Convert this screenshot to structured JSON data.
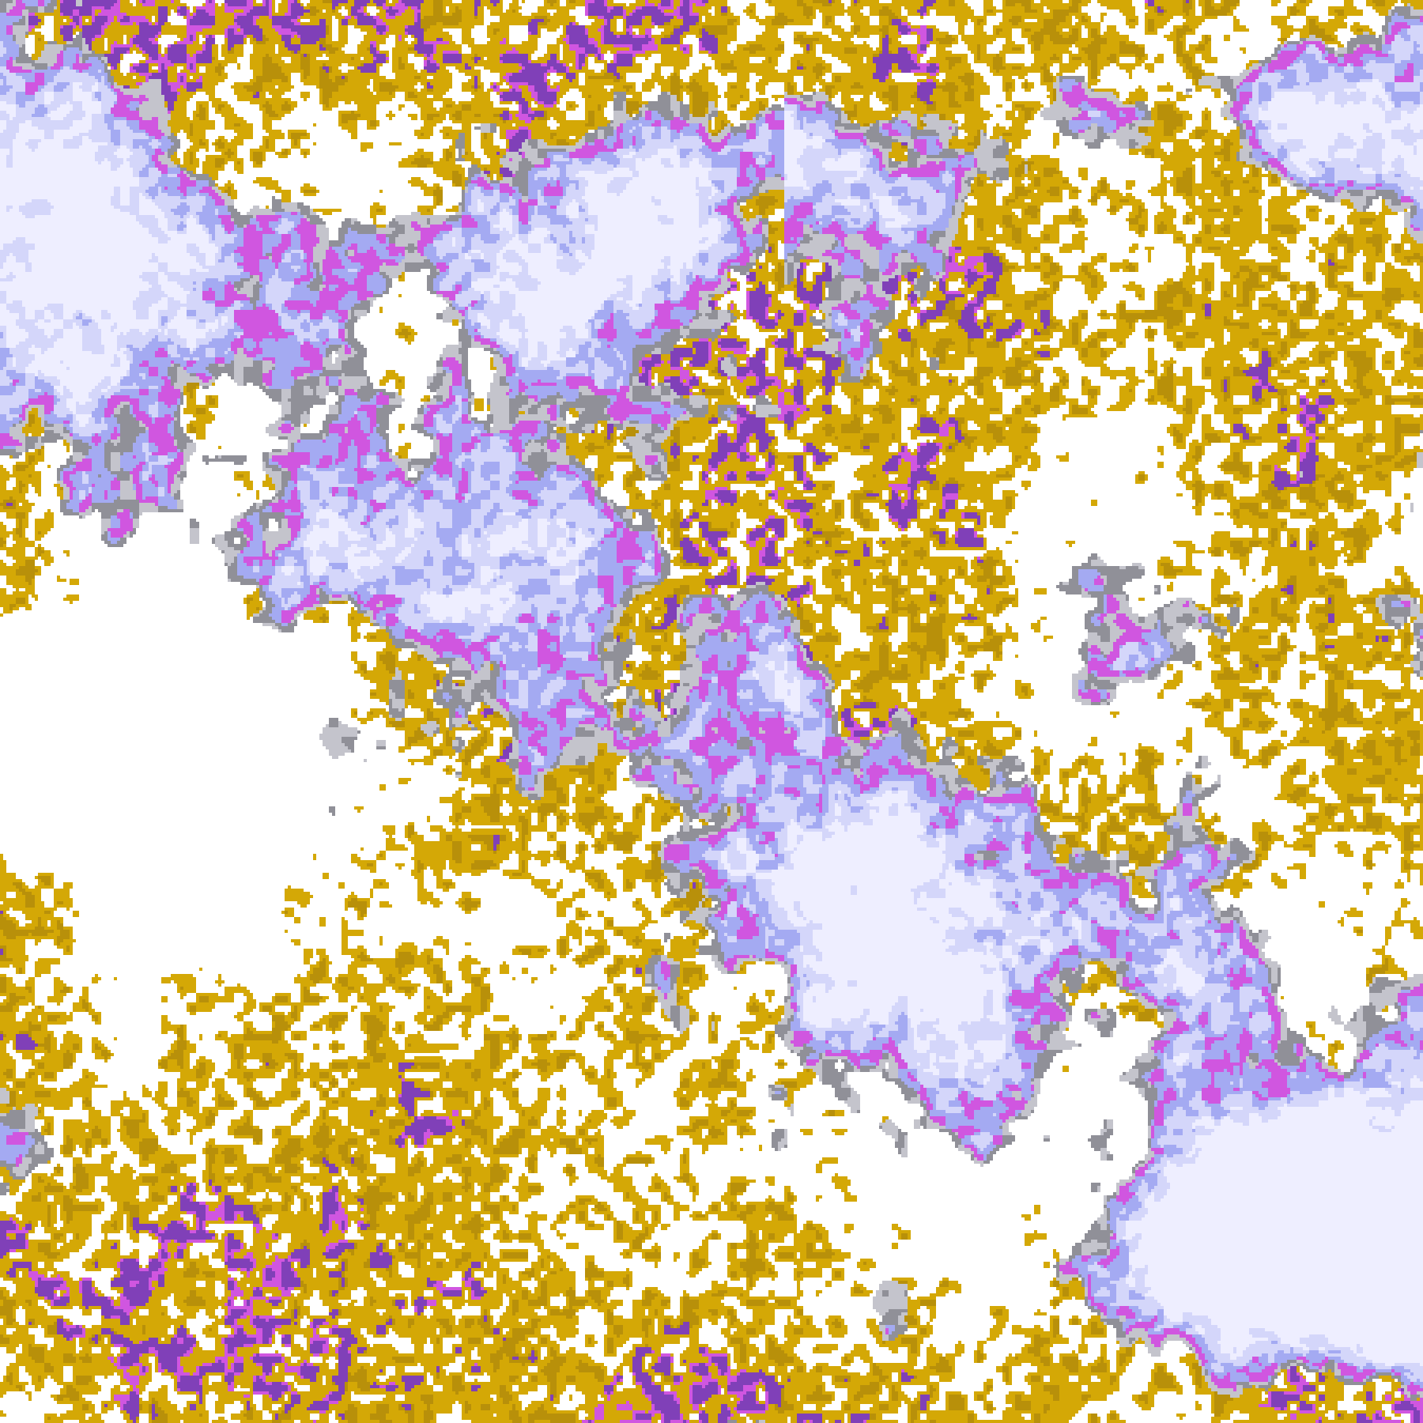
{
  "image": {
    "kind": "false-color satellite cloud imagery",
    "palette": {
      "clear": "#ffffff",
      "gold": "#d4a806",
      "dark_gold": "#b8900a",
      "gray_dark": "#909098",
      "gray_light": "#c4c4cc",
      "periwinkle": "#a4aaf2",
      "lavender_light": "#d4d6fa",
      "lavender": "#eeeeff",
      "magenta": "#d056e0",
      "purple": "#8040b8"
    }
  }
}
